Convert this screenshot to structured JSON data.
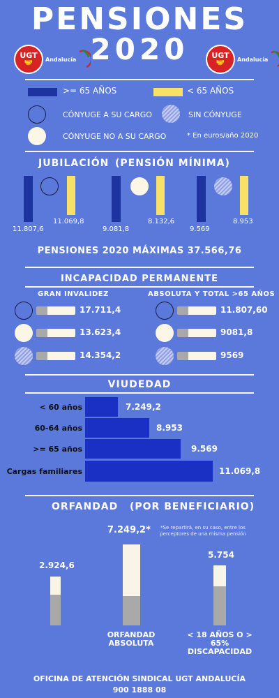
{
  "header": {
    "title_line1": "PENSIONES",
    "title_line2": "2020",
    "logo_text": "UGT",
    "logo_region": "Andalucía"
  },
  "legend": {
    "ge65": ">= 65 AÑOS",
    "lt65": "< 65 AÑOS",
    "conyuge_cargo": "CÓNYUGE A SU CARGO",
    "sin_conyuge": "SIN CÓNYUGE",
    "conyuge_no_cargo": "CÓNYUGE NO A SU CARGO",
    "nota": "* En euros/año 2020"
  },
  "jubilacion": {
    "title": "JUBILACIÓN",
    "subtitle": "(PENSIÓN MÍNIMA)",
    "groups": [
      {
        "ge65": "11.807,6",
        "lt65": "11.069,8"
      },
      {
        "ge65": "9.081,8",
        "lt65": "8.132,6"
      },
      {
        "ge65": "9.569",
        "lt65": "8.953"
      }
    ],
    "maximas": "PENSIONES 2020 MÁXIMAS 37.566,76"
  },
  "incapacidad": {
    "title": "INCAPACIDAD PERMANENTE",
    "left_title": "GRAN INVALIDEZ",
    "right_title": "ABSOLUTA Y TOTAL >65 AÑOS",
    "left_values": [
      "17.711,4",
      "13.623,4",
      "14.354,2"
    ],
    "right_values": [
      "11.807,60",
      "9081,8",
      "9569"
    ]
  },
  "viudedad": {
    "title": "VIUDEDAD",
    "rows": [
      {
        "label": "< 60 años",
        "value": "7.249,2"
      },
      {
        "label": "60-64 años",
        "value": "8.953"
      },
      {
        "label": ">= 65 años",
        "value": "9.569"
      },
      {
        "label": "Cargas familiares",
        "value": "11.069,8"
      }
    ]
  },
  "orfandad": {
    "title": "ORFANDAD",
    "subtitle": "(POR BENEFICIARIO)",
    "bar1_value": "2.924,6",
    "bar2_value": "7.249,2*",
    "bar2_label": "ORFANDAD ABSOLUTA",
    "bar3_value": "5.754",
    "bar3_label": "< 18 AÑOS O > 65% DISCAPACIDAD",
    "note": "*Se repartirá, en su caso, entre los perceptores de una misma pensión"
  },
  "footer": {
    "office": "OFICINA DE ATENCIÓN SINDICAL UGT ANDALUCÍA",
    "phone": "900 1888 08"
  }
}
